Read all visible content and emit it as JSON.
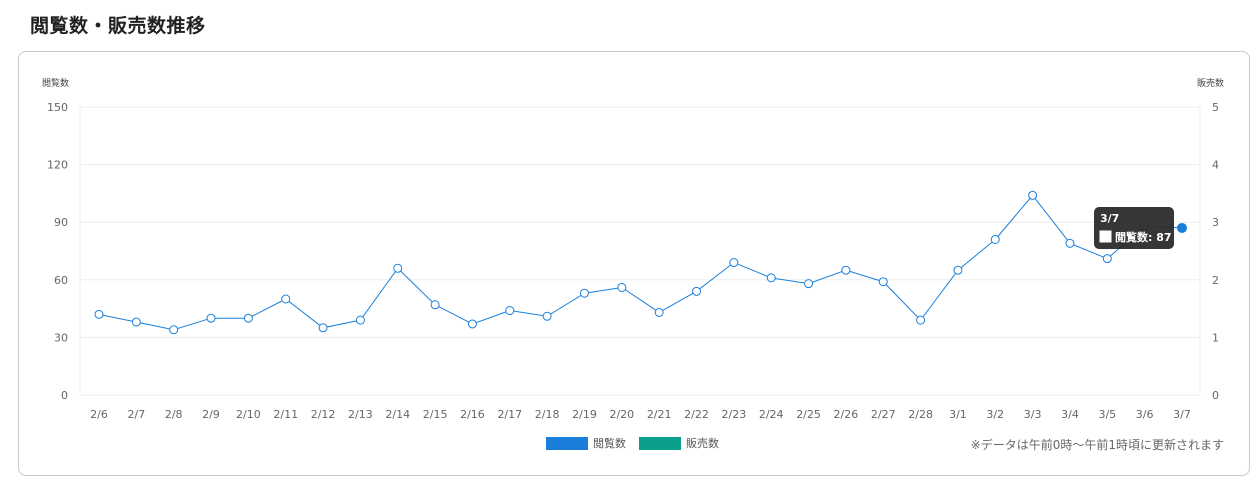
{
  "page": {
    "title": "閲覧数・販売数推移"
  },
  "note": "※データは午前0時〜午前1時頃に更新されます",
  "chart_data": {
    "type": "line",
    "left_axis": {
      "label": "閲覧数",
      "ticks": [
        "150",
        "120",
        "90",
        "60",
        "30",
        "0"
      ],
      "range": [
        0,
        150
      ]
    },
    "right_axis": {
      "label": "販売数",
      "ticks": [
        "5",
        "4",
        "3",
        "2",
        "1",
        "0"
      ],
      "range": [
        0,
        5
      ]
    },
    "categories": [
      "2/6",
      "2/7",
      "2/8",
      "2/9",
      "2/10",
      "2/11",
      "2/12",
      "2/13",
      "2/14",
      "2/15",
      "2/16",
      "2/17",
      "2/18",
      "2/19",
      "2/20",
      "2/21",
      "2/22",
      "2/23",
      "2/24",
      "2/25",
      "2/26",
      "2/27",
      "2/28",
      "3/1",
      "3/2",
      "3/3",
      "3/4",
      "3/5",
      "3/6",
      "3/7"
    ],
    "series": [
      {
        "name": "閲覧数",
        "axis": "left",
        "color": "#1a7fdb",
        "values": [
          42,
          38,
          34,
          40,
          40,
          50,
          35,
          39,
          66,
          47,
          37,
          44,
          41,
          53,
          56,
          43,
          54,
          69,
          61,
          58,
          65,
          59,
          39,
          65,
          81,
          104,
          79,
          71,
          88,
          87
        ]
      },
      {
        "name": "販売数",
        "axis": "right",
        "color": "#0aa08c",
        "values": [
          0,
          0,
          0,
          0,
          0,
          0,
          0,
          0,
          0,
          0,
          0,
          0,
          0,
          0,
          0,
          0,
          0,
          0,
          0,
          0,
          0,
          0,
          0,
          0,
          0,
          0,
          0,
          0,
          0,
          0
        ]
      }
    ],
    "grid": true,
    "legend_position": "bottom",
    "legend": [
      {
        "label": "閲覧数",
        "color": "#1a7fdb"
      },
      {
        "label": "販売数",
        "color": "#0aa08c"
      }
    ],
    "tooltip": {
      "title": "3/7",
      "text": "閲覧数: 87",
      "index": 29
    }
  }
}
